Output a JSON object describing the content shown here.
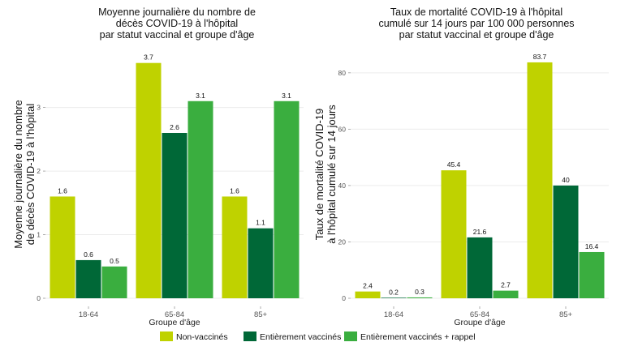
{
  "legend": [
    {
      "label": "Non-vaccinés",
      "color": "#bfd200"
    },
    {
      "label": "Entièrement vaccinés",
      "color": "#006837"
    },
    {
      "label": "Entièrement vaccinés + rappel",
      "color": "#3aae3f"
    }
  ],
  "chart_data": [
    {
      "type": "bar",
      "title": [
        "Moyenne journalière du nombre de",
        "décès COVID-19 à l'hôpital",
        "par statut vaccinal et groupe d'âge"
      ],
      "ylabel": [
        "Moyenne journalière du nombre",
        "de décès COVID-19 à l'hôpital"
      ],
      "xlabel": "Groupe d'âge",
      "categories": [
        "18-64",
        "65-84",
        "85+"
      ],
      "ylim": [
        0,
        3.9
      ],
      "yticks": [
        0,
        1,
        2,
        3
      ],
      "series": [
        {
          "name": "Non-vaccinés",
          "color": "#bfd200",
          "values": [
            1.6,
            3.7,
            1.6
          ]
        },
        {
          "name": "Entièrement vaccinés",
          "color": "#006837",
          "values": [
            0.6,
            2.6,
            1.1
          ]
        },
        {
          "name": "Entièrement vaccinés + rappel",
          "color": "#3aae3f",
          "values": [
            0.5,
            3.1,
            3.1
          ]
        }
      ]
    },
    {
      "type": "bar",
      "title": [
        "Taux de mortalité COVID-19 à l'hôpital",
        "cumulé sur 14 jours par 100 000 personnes",
        "par statut vaccinal et groupe d'âge"
      ],
      "ylabel": [
        "Taux de mortalité COVID-19",
        "à l'hôpital cumulé sur 14 jours"
      ],
      "xlabel": "Groupe d'âge",
      "categories": [
        "18-64",
        "65-84",
        "85+"
      ],
      "ylim": [
        0,
        88
      ],
      "yticks": [
        0,
        20,
        40,
        60,
        80
      ],
      "series": [
        {
          "name": "Non-vaccinés",
          "color": "#bfd200",
          "values": [
            2.4,
            45.4,
            83.7
          ]
        },
        {
          "name": "Entièrement vaccinés",
          "color": "#006837",
          "values": [
            0.2,
            21.6,
            40
          ]
        },
        {
          "name": "Entièrement vaccinés + rappel",
          "color": "#3aae3f",
          "values": [
            0.3,
            2.7,
            16.4
          ]
        }
      ]
    }
  ]
}
